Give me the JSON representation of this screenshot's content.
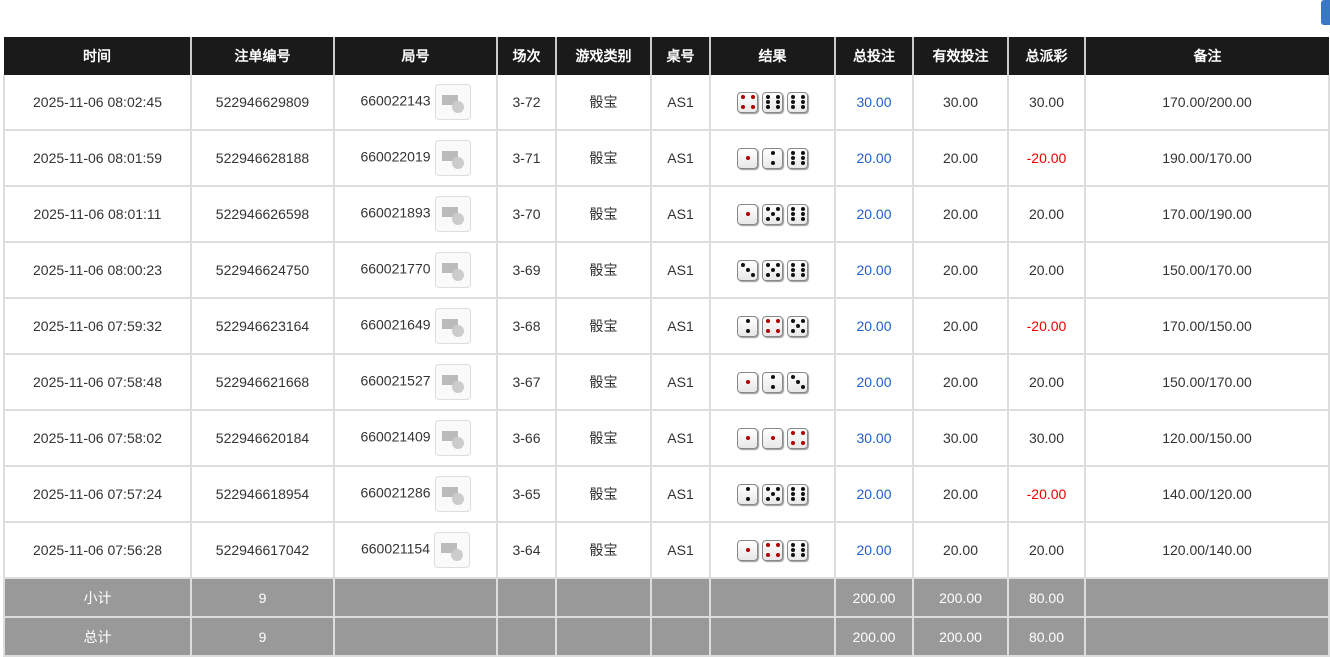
{
  "headers": [
    "时间",
    "注单编号",
    "局号",
    "场次",
    "游戏类别",
    "桌号",
    "结果",
    "总投注",
    "有效投注",
    "总派彩",
    "备注"
  ],
  "rows": [
    {
      "time": "2025-11-06 08:02:45",
      "order": "522946629809",
      "round": "660022143",
      "session": "3-72",
      "game": "骰宝",
      "table": "AS1",
      "dice": [
        4,
        6,
        6
      ],
      "bet": "30.00",
      "valid": "30.00",
      "payout": "30.00",
      "payout_neg": false,
      "note": "170.00/200.00"
    },
    {
      "time": "2025-11-06 08:01:59",
      "order": "522946628188",
      "round": "660022019",
      "session": "3-71",
      "game": "骰宝",
      "table": "AS1",
      "dice": [
        1,
        2,
        6
      ],
      "bet": "20.00",
      "valid": "20.00",
      "payout": "-20.00",
      "payout_neg": true,
      "note": "190.00/170.00"
    },
    {
      "time": "2025-11-06 08:01:11",
      "order": "522946626598",
      "round": "660021893",
      "session": "3-70",
      "game": "骰宝",
      "table": "AS1",
      "dice": [
        1,
        5,
        6
      ],
      "bet": "20.00",
      "valid": "20.00",
      "payout": "20.00",
      "payout_neg": false,
      "note": "170.00/190.00"
    },
    {
      "time": "2025-11-06 08:00:23",
      "order": "522946624750",
      "round": "660021770",
      "session": "3-69",
      "game": "骰宝",
      "table": "AS1",
      "dice": [
        3,
        5,
        6
      ],
      "bet": "20.00",
      "valid": "20.00",
      "payout": "20.00",
      "payout_neg": false,
      "note": "150.00/170.00"
    },
    {
      "time": "2025-11-06 07:59:32",
      "order": "522946623164",
      "round": "660021649",
      "session": "3-68",
      "game": "骰宝",
      "table": "AS1",
      "dice": [
        2,
        4,
        5
      ],
      "bet": "20.00",
      "valid": "20.00",
      "payout": "-20.00",
      "payout_neg": true,
      "note": "170.00/150.00"
    },
    {
      "time": "2025-11-06 07:58:48",
      "order": "522946621668",
      "round": "660021527",
      "session": "3-67",
      "game": "骰宝",
      "table": "AS1",
      "dice": [
        1,
        2,
        3
      ],
      "bet": "20.00",
      "valid": "20.00",
      "payout": "20.00",
      "payout_neg": false,
      "note": "150.00/170.00"
    },
    {
      "time": "2025-11-06 07:58:02",
      "order": "522946620184",
      "round": "660021409",
      "session": "3-66",
      "game": "骰宝",
      "table": "AS1",
      "dice": [
        1,
        1,
        4
      ],
      "bet": "30.00",
      "valid": "30.00",
      "payout": "30.00",
      "payout_neg": false,
      "note": "120.00/150.00"
    },
    {
      "time": "2025-11-06 07:57:24",
      "order": "522946618954",
      "round": "660021286",
      "session": "3-65",
      "game": "骰宝",
      "table": "AS1",
      "dice": [
        2,
        5,
        6
      ],
      "bet": "20.00",
      "valid": "20.00",
      "payout": "-20.00",
      "payout_neg": true,
      "note": "140.00/120.00"
    },
    {
      "time": "2025-11-06 07:56:28",
      "order": "522946617042",
      "round": "660021154",
      "session": "3-64",
      "game": "骰宝",
      "table": "AS1",
      "dice": [
        1,
        4,
        6
      ],
      "bet": "20.00",
      "valid": "20.00",
      "payout": "20.00",
      "payout_neg": false,
      "note": "120.00/140.00"
    }
  ],
  "subtotal": {
    "label": "小计",
    "count": "9",
    "bet": "200.00",
    "valid": "200.00",
    "payout": "80.00"
  },
  "total": {
    "label": "总计",
    "count": "9",
    "bet": "200.00",
    "valid": "200.00",
    "payout": "80.00"
  },
  "colors": {
    "bet": "#1f5fcf",
    "negative": "#e00000",
    "pip_red": "#b00000"
  }
}
